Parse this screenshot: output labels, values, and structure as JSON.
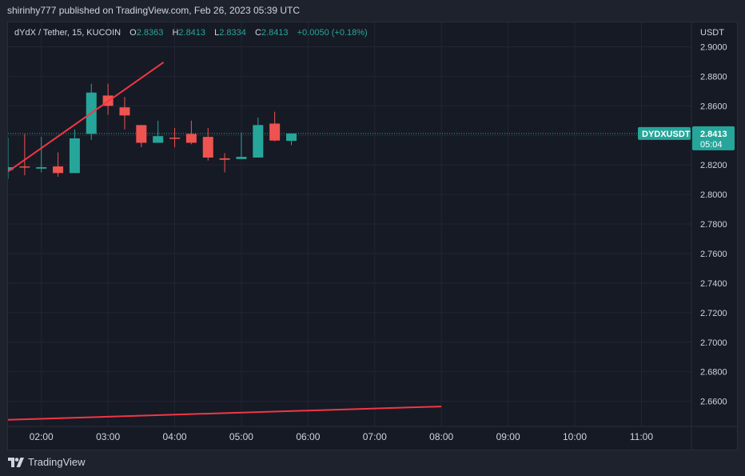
{
  "header": {
    "publisher_line": "shirinhy777 published on TradingView.com, Feb 26, 2023 05:39 UTC"
  },
  "legend": {
    "symbol_line": "dYdX / Tether, 15, KUCOIN",
    "open_label": "O",
    "open_value": "2.8363",
    "high_label": "H",
    "high_value": "2.8413",
    "low_label": "L",
    "low_value": "2.8334",
    "close_label": "C",
    "close_value": "2.8413",
    "change": "+0.0050 (+0.18%)"
  },
  "price_axis": {
    "currency": "USDT"
  },
  "price_badge": {
    "symbol": "DYDXUSDT",
    "price": "2.8413",
    "countdown": "05:04"
  },
  "footer": {
    "brand": "TradingView"
  },
  "colors": {
    "up": "#26a69a",
    "down": "#ef5350",
    "trendline": "#f23645",
    "background": "#161a25",
    "grid": "#232632"
  },
  "chart_data": {
    "type": "candlestick",
    "ylim": [
      2.643,
      2.9165
    ],
    "xlim": [
      "01:30",
      "11:45"
    ],
    "y_ticks": [
      2.66,
      2.68,
      2.7,
      2.72,
      2.74,
      2.76,
      2.78,
      2.8,
      2.82,
      2.84,
      2.86,
      2.88,
      2.9
    ],
    "y_tick_labels": [
      "2.6600",
      "2.6800",
      "2.7000",
      "2.7200",
      "2.7400",
      "2.7600",
      "2.7800",
      "2.8000",
      "2.8200",
      "2.8400",
      "2.8600",
      "2.8800",
      "2.9000"
    ],
    "x_ticks": [
      "02:00",
      "03:00",
      "04:00",
      "05:00",
      "06:00",
      "07:00",
      "08:00",
      "09:00",
      "10:00",
      "11:00"
    ],
    "current_price": 2.8413,
    "candles": [
      {
        "t": "01:30",
        "o": 2.8165,
        "h": 2.8385,
        "l": 2.8105,
        "c": 2.8185
      },
      {
        "t": "01:45",
        "o": 2.819,
        "h": 2.841,
        "l": 2.813,
        "c": 2.8185
      },
      {
        "t": "02:00",
        "o": 2.8175,
        "h": 2.839,
        "l": 2.815,
        "c": 2.8185
      },
      {
        "t": "02:15",
        "o": 2.819,
        "h": 2.8285,
        "l": 2.812,
        "c": 2.8145
      },
      {
        "t": "02:30",
        "o": 2.8145,
        "h": 2.844,
        "l": 2.8145,
        "c": 2.838
      },
      {
        "t": "02:45",
        "o": 2.841,
        "h": 2.875,
        "l": 2.837,
        "c": 2.869
      },
      {
        "t": "03:00",
        "o": 2.867,
        "h": 2.875,
        "l": 2.854,
        "c": 2.86
      },
      {
        "t": "03:15",
        "o": 2.859,
        "h": 2.866,
        "l": 2.844,
        "c": 2.8535
      },
      {
        "t": "03:30",
        "o": 2.847,
        "h": 2.847,
        "l": 2.832,
        "c": 2.835
      },
      {
        "t": "03:45",
        "o": 2.835,
        "h": 2.85,
        "l": 2.835,
        "c": 2.8395
      },
      {
        "t": "04:00",
        "o": 2.8385,
        "h": 2.845,
        "l": 2.832,
        "c": 2.838
      },
      {
        "t": "04:15",
        "o": 2.841,
        "h": 2.85,
        "l": 2.834,
        "c": 2.835
      },
      {
        "t": "04:30",
        "o": 2.839,
        "h": 2.845,
        "l": 2.823,
        "c": 2.825
      },
      {
        "t": "04:45",
        "o": 2.8245,
        "h": 2.828,
        "l": 2.815,
        "c": 2.8235
      },
      {
        "t": "05:00",
        "o": 2.824,
        "h": 2.842,
        "l": 2.824,
        "c": 2.8255
      },
      {
        "t": "05:15",
        "o": 2.825,
        "h": 2.852,
        "l": 2.825,
        "c": 2.847
      },
      {
        "t": "05:30",
        "o": 2.848,
        "h": 2.856,
        "l": 2.836,
        "c": 2.8365
      },
      {
        "t": "05:45",
        "o": 2.8363,
        "h": 2.8413,
        "l": 2.8334,
        "c": 2.8413
      }
    ],
    "trendlines": [
      {
        "start": {
          "t": "01:30",
          "y": 2.8155
        },
        "end": {
          "t": "03:50",
          "y": 2.8895
        }
      },
      {
        "start": {
          "t": "01:30",
          "y": 2.6475
        },
        "end": {
          "t": "08:00",
          "y": 2.6565
        }
      }
    ]
  }
}
